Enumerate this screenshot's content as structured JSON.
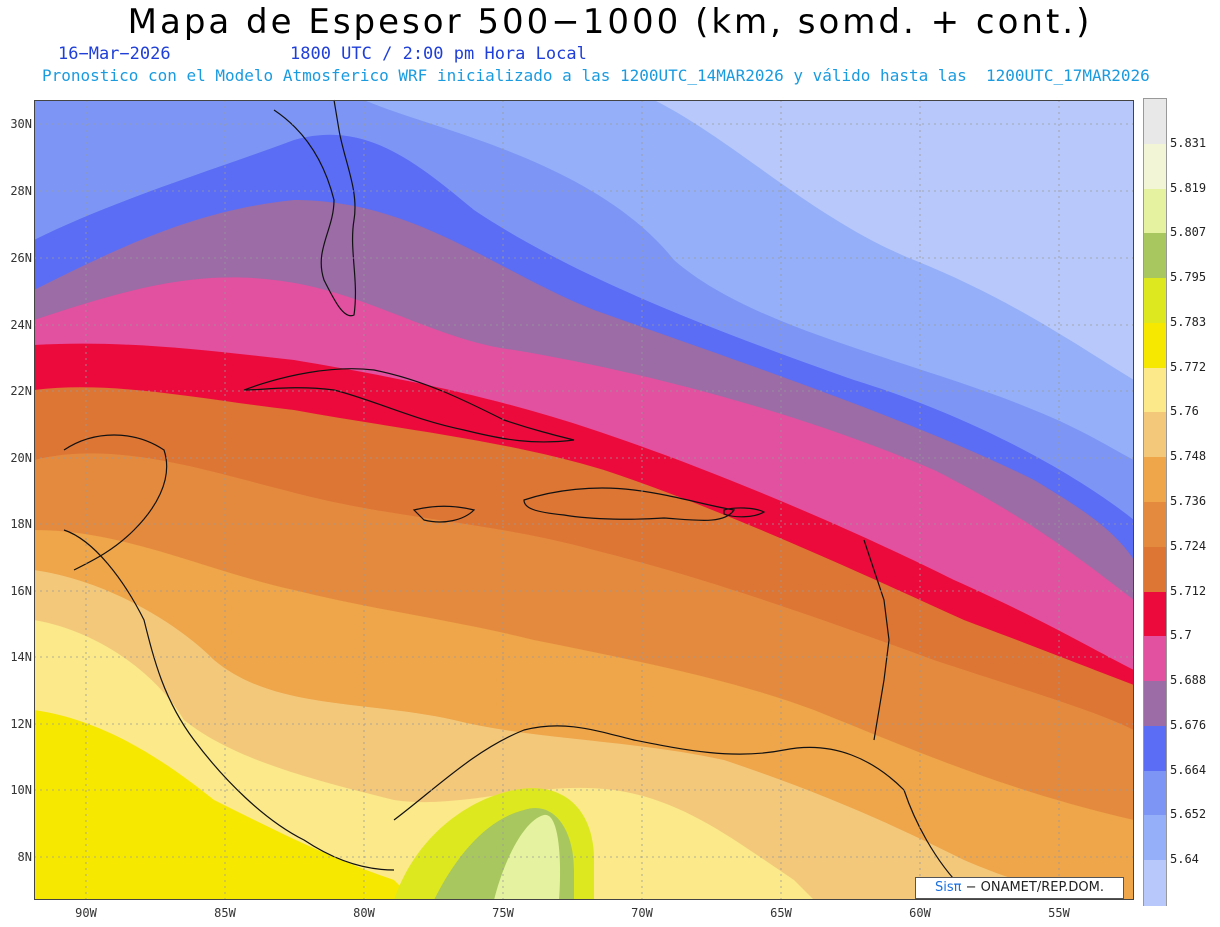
{
  "header": {
    "title": "Mapa de Espesor 500−1000 (km, somd. + cont.)",
    "date": "16−Mar−2026",
    "time": "1800 UTC / 2:00 pm Hora Local",
    "forecast": "Pronostico con el Modelo Atmosferico WRF inicializado a las 1200UTC_14MAR2026 y válido hasta las  1200UTC_17MAR2026"
  },
  "axes": {
    "lat_labels": [
      "30N",
      "28N",
      "26N",
      "24N",
      "22N",
      "20N",
      "18N",
      "16N",
      "14N",
      "12N",
      "10N",
      "8N"
    ],
    "lon_labels": [
      "90W",
      "85W",
      "80W",
      "75W",
      "70W",
      "65W",
      "60W",
      "55W"
    ]
  },
  "colorbar": {
    "labels": [
      "5.831",
      "5.819",
      "5.807",
      "5.795",
      "5.783",
      "5.772",
      "5.76",
      "5.748",
      "5.736",
      "5.724",
      "5.712",
      "5.7",
      "5.688",
      "5.676",
      "5.664",
      "5.652",
      "5.64"
    ],
    "colors": [
      "#e8e8e8",
      "#f2f5d6",
      "#e5f3a0",
      "#a8c75e",
      "#dde81e",
      "#f7e800",
      "#fbe98a",
      "#f3c87a",
      "#efa54a",
      "#e48a3e",
      "#dd7535",
      "#ec0a3c",
      "#e250a0",
      "#9b6ca6",
      "#5b6df5",
      "#7d96f5",
      "#95b0f8",
      "#b8c8fb"
    ]
  },
  "credit": {
    "brand": "Sisπ",
    "text": "− ONAMET/REP.DOM."
  }
}
